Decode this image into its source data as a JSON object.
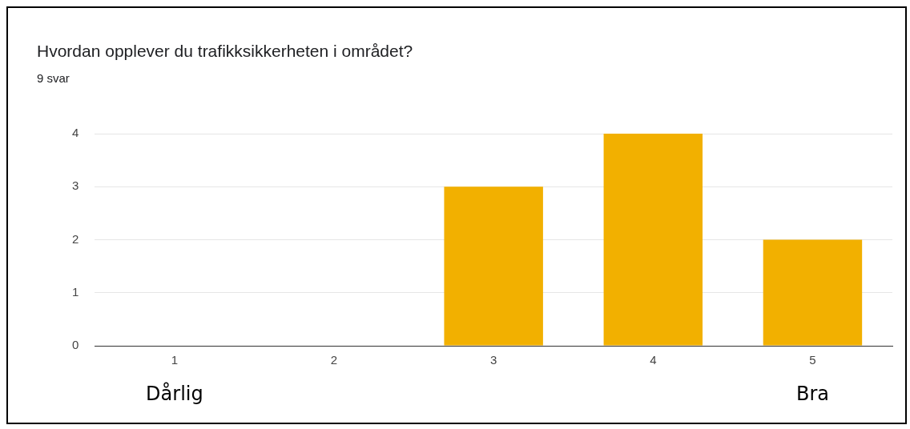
{
  "chart_data": {
    "type": "bar",
    "title": "Hvordan opplever du trafikksikkerheten i området?",
    "subtitle": "9 svar",
    "categories": [
      "1",
      "2",
      "3",
      "4",
      "5"
    ],
    "values": [
      0,
      0,
      3,
      4,
      2
    ],
    "color": "#f2b000",
    "ylim": [
      0,
      4
    ],
    "yticks": [
      0,
      1,
      2,
      3,
      4
    ],
    "grid": "y",
    "annotations": [
      "Dårlig",
      "Bra"
    ]
  }
}
